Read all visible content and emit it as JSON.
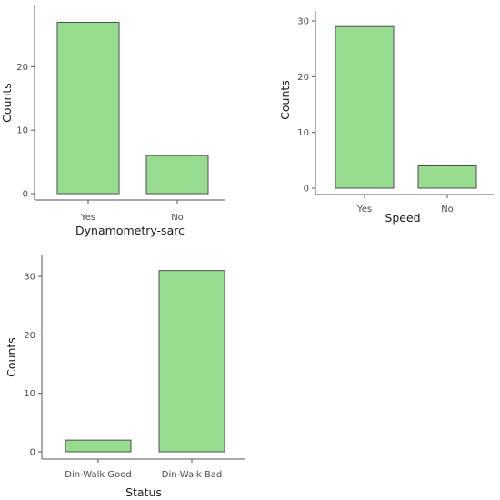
{
  "colors": {
    "bar_fill": "#98dc90",
    "bar_stroke": "#4d4d4d",
    "axis": "#555555"
  },
  "chart_data": [
    {
      "type": "bar",
      "categories": [
        "Yes",
        "No"
      ],
      "values": [
        27,
        6
      ],
      "xlabel": "Dynamometry-sarc",
      "ylabel": "Counts",
      "ylim": [
        0,
        28.5
      ],
      "yticks": [
        0,
        10,
        20
      ],
      "grid": false
    },
    {
      "type": "bar",
      "categories": [
        "Yes",
        "No"
      ],
      "values": [
        29,
        4
      ],
      "xlabel": "Speed",
      "ylabel": "Counts",
      "ylim": [
        0,
        30.5
      ],
      "yticks": [
        0,
        10,
        20,
        30
      ],
      "grid": false
    },
    {
      "type": "bar",
      "categories": [
        "Din-Walk Good",
        "Din-Walk Bad"
      ],
      "values": [
        2,
        31
      ],
      "xlabel": "Status",
      "ylabel": "Counts",
      "ylim": [
        0,
        32.5
      ],
      "yticks": [
        0,
        10,
        20,
        30
      ],
      "grid": false
    }
  ]
}
